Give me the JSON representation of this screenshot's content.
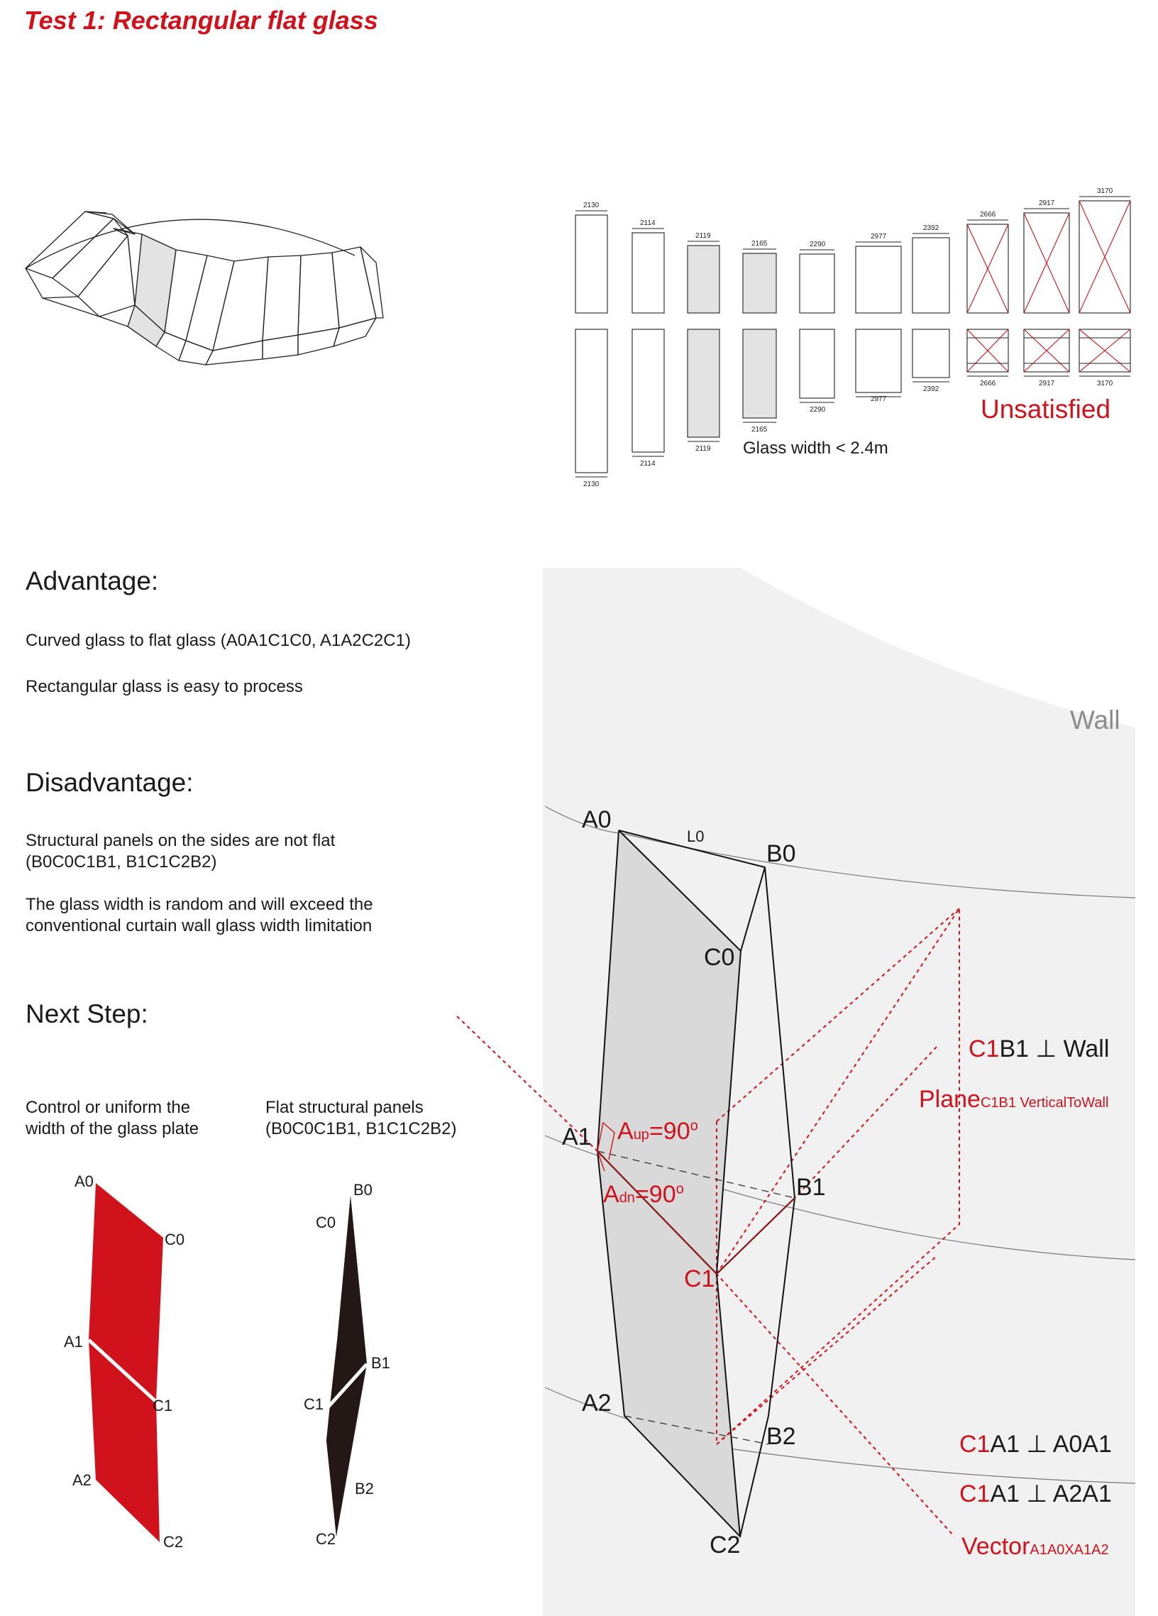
{
  "title": "Test 1: Rectangular flat glass",
  "panels": {
    "top_widths": [
      "2130",
      "2114",
      "2119",
      "2165",
      "2290",
      "2977",
      "2392",
      "2666",
      "2917",
      "3170"
    ],
    "bottom_widths": [
      "2130",
      "2114",
      "2119",
      "2165",
      "2290",
      "2977",
      "2392",
      "2666",
      "2917",
      "3170"
    ],
    "note": "Glass width < 2.4m",
    "unsatisfied": "Unsatisfied"
  },
  "advantage": {
    "heading": "Advantage:",
    "line1": "Curved glass to flat glass (A0A1C1C0, A1A2C2C1)",
    "line2": "Rectangular glass is easy to process"
  },
  "disadvantage": {
    "heading": "Disadvantage:",
    "p1a": "Structural panels on the sides are not flat",
    "p1b": "(B0C0C1B1, B1C1C2B2)",
    "p2a": "The glass width is random and will exceed the",
    "p2b": "conventional curtain wall glass width limitation"
  },
  "next_step": {
    "heading": "Next Step:",
    "col1a": "Control or uniform the",
    "col1b": "width of the glass plate",
    "col2a": "Flat structural panels",
    "col2b": "(B0C0C1B1, B1C1C2B2)"
  },
  "red_shape_labels": {
    "a0": "A0",
    "c0": "C0",
    "a1": "A1",
    "c1": "C1",
    "a2": "A2",
    "c2": "C2"
  },
  "black_shape_labels": {
    "b0": "B0",
    "c0": "C0",
    "b1": "B1",
    "c1": "C1",
    "b2": "B2",
    "c2": "C2"
  },
  "diagram": {
    "wall": "Wall",
    "a0": "A0",
    "b0": "B0",
    "c0": "C0",
    "l0": "L0",
    "a1": "A1",
    "b1": "B1",
    "c1": "C1",
    "a2": "A2",
    "b2": "B2",
    "c2": "C2",
    "aup_main": "A",
    "aup_sub": "up",
    "aup_val": "=90",
    "adn_main": "A",
    "adn_sub": "dn",
    "adn_val": "=90",
    "deg": "o",
    "c1b1_red": "C1",
    "c1b1_rest": "B1 ⊥ Wall",
    "plane_main": "Plane",
    "plane_sub": "C1B1 VerticalToWall",
    "c1a1_1_red": "C1",
    "c1a1_1_rest": "A1 ⊥ A0A1",
    "c1a1_2_red": "C1",
    "c1a1_2_rest": "A1 ⊥ A2A1",
    "vector_main": "Vector",
    "vector_sub": "A1A0XA1A2"
  },
  "colors": {
    "accent": "#d0121c",
    "dark": "#231815",
    "panel_fill": "#e6e6e6",
    "bg_panel": "#f1f1f1"
  }
}
